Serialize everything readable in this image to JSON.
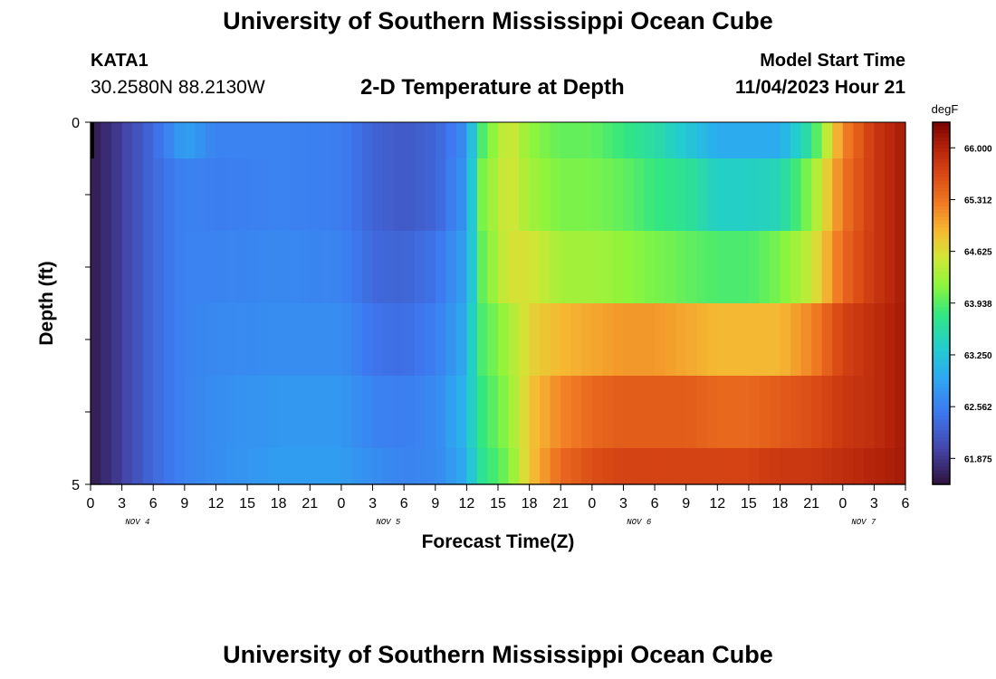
{
  "header": {
    "title": "University of Southern Mississippi Ocean Cube",
    "station_id": "KATA1",
    "station_coords": "30.2580N  88.2130W",
    "subtitle": "2-D Temperature at Depth",
    "model_start_label": "Model Start Time",
    "model_start_value": "11/04/2023 Hour 21"
  },
  "footer": {
    "title": "University of Southern Mississippi Ocean Cube"
  },
  "chart_data": {
    "type": "heatmap",
    "xlabel": "Forecast Time(Z)",
    "ylabel": "Depth (ft)",
    "colorbar_unit": "degF",
    "ylim": [
      0,
      5
    ],
    "y_tick_labels": [
      "0",
      "5"
    ],
    "x_tick_labels": [
      "0",
      "3",
      "6",
      "9",
      "12",
      "15",
      "18",
      "21",
      "0",
      "3",
      "6",
      "9",
      "12",
      "15",
      "18",
      "21",
      "0",
      "3",
      "6",
      "9",
      "12",
      "15",
      "18",
      "21",
      "0",
      "3",
      "6"
    ],
    "x_day_labels": [
      {
        "label": "NOV 4",
        "hour": 4.5
      },
      {
        "label": "NOV 5",
        "hour": 28.5
      },
      {
        "label": "NOV 6",
        "hour": 52.5
      },
      {
        "label": "NOV 7",
        "hour": 74
      }
    ],
    "x_hour_range": [
      0,
      78
    ],
    "colorbar_range": [
      61.53,
      66.34
    ],
    "colorbar_ticks": [
      "66.000",
      "65.312",
      "64.625",
      "63.938",
      "63.250",
      "62.562",
      "61.875"
    ],
    "depth_layers": [
      "0-0.5 ft",
      "0.5-1.5 ft",
      "1.5-2.5 ft",
      "2.5-3.5 ft",
      "3.5-4.5 ft",
      "4.5-5 ft"
    ],
    "time_knots_hours": [
      0,
      3,
      6,
      9,
      12,
      18,
      24,
      27,
      30,
      33,
      36,
      36.5,
      37.5,
      40,
      42,
      45,
      48,
      51,
      54,
      57,
      60,
      63,
      66,
      69,
      72,
      75,
      78
    ],
    "series": [
      {
        "values": [
          61.6,
          61.95,
          62.35,
          62.9,
          62.6,
          62.6,
          62.55,
          62.3,
          62.2,
          62.3,
          62.7,
          63.2,
          63.9,
          64.6,
          64.2,
          64.0,
          64.0,
          63.8,
          63.6,
          63.3,
          63.0,
          63.0,
          63.0,
          63.7,
          65.2,
          65.8,
          66.1
        ]
      },
      {
        "values": [
          61.6,
          61.95,
          62.35,
          62.6,
          62.55,
          62.6,
          62.55,
          62.3,
          62.2,
          62.3,
          62.8,
          63.3,
          64.1,
          64.6,
          64.3,
          64.1,
          64.1,
          64.0,
          63.8,
          63.7,
          63.4,
          63.4,
          63.5,
          64.2,
          65.3,
          65.8,
          66.1
        ]
      },
      {
        "values": [
          61.6,
          61.95,
          62.35,
          62.6,
          62.6,
          62.65,
          62.6,
          62.35,
          62.3,
          62.45,
          62.9,
          63.3,
          64.0,
          64.6,
          64.6,
          64.3,
          64.3,
          64.2,
          64.1,
          64.0,
          63.9,
          63.9,
          64.1,
          64.5,
          65.4,
          65.8,
          66.1
        ]
      },
      {
        "values": [
          61.6,
          61.95,
          62.35,
          62.6,
          62.65,
          62.7,
          62.7,
          62.45,
          62.4,
          62.55,
          63.0,
          63.4,
          63.9,
          64.3,
          64.7,
          64.9,
          65.0,
          65.1,
          65.1,
          65.0,
          64.9,
          64.9,
          64.9,
          65.2,
          65.7,
          65.9,
          66.1
        ]
      },
      {
        "values": [
          61.6,
          61.95,
          62.35,
          62.6,
          62.7,
          62.8,
          62.8,
          62.6,
          62.55,
          62.65,
          63.1,
          63.4,
          63.8,
          64.2,
          64.8,
          65.2,
          65.4,
          65.5,
          65.5,
          65.5,
          65.4,
          65.4,
          65.5,
          65.6,
          65.8,
          65.9,
          66.1
        ]
      },
      {
        "values": [
          61.6,
          61.95,
          62.35,
          62.6,
          62.7,
          62.85,
          62.85,
          62.7,
          62.6,
          62.65,
          63.0,
          63.3,
          63.7,
          64.1,
          64.8,
          65.4,
          65.6,
          65.7,
          65.7,
          65.7,
          65.7,
          65.7,
          65.8,
          65.8,
          65.9,
          66.0,
          66.1
        ]
      }
    ]
  }
}
